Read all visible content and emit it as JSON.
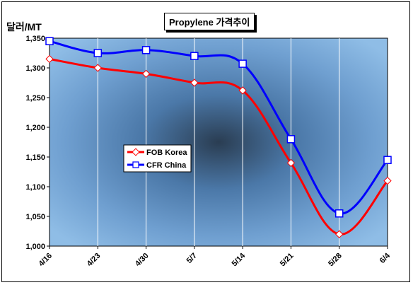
{
  "chart_data": {
    "type": "line",
    "title": "Propylene 가격추이",
    "ylabel": "달러/MT",
    "xlabel": "",
    "categories": [
      "4/16",
      "4/23",
      "4/30",
      "5/7",
      "5/14",
      "5/21",
      "5/28",
      "6/4"
    ],
    "ylim": [
      1000,
      1350
    ],
    "yticks": [
      1000,
      1050,
      1100,
      1150,
      1200,
      1250,
      1300,
      1350
    ],
    "ytick_labels": [
      "1,000",
      "1,050",
      "1,100",
      "1,150",
      "1,200",
      "1,250",
      "1,300",
      "1,350"
    ],
    "grid": "vertical",
    "legend_position": "center-left",
    "series": [
      {
        "name": "FOB Korea",
        "color": "#ff0000",
        "marker": "diamond",
        "values": [
          1315,
          1300,
          1290,
          1275,
          1262,
          1140,
          1020,
          1110
        ]
      },
      {
        "name": "CFR China",
        "color": "#0000ff",
        "marker": "square",
        "values": [
          1345,
          1325,
          1330,
          1320,
          1307,
          1180,
          1055,
          1145
        ]
      }
    ]
  }
}
